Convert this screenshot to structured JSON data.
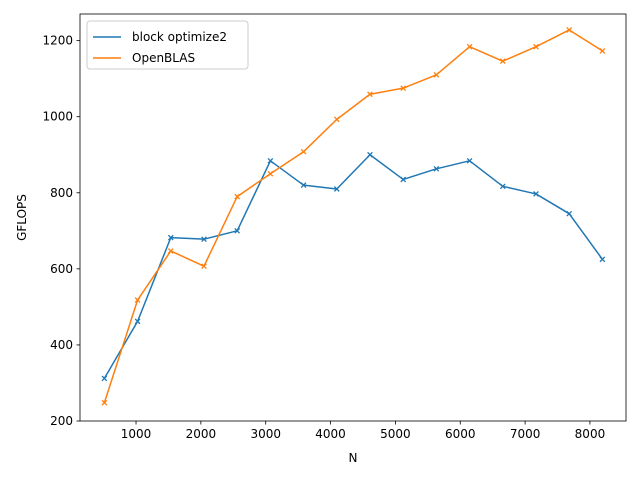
{
  "chart_data": {
    "type": "line",
    "title": "",
    "xlabel": "N",
    "ylabel": "GFLOPS",
    "xlim": [
      136,
      8556
    ],
    "ylim": [
      200,
      1270
    ],
    "xticks": [
      1000,
      2000,
      3000,
      4000,
      5000,
      6000,
      7000,
      8000
    ],
    "yticks": [
      200,
      400,
      600,
      800,
      1000,
      1200
    ],
    "grid": false,
    "legend_position": "top-left",
    "x": [
      512,
      1024,
      1536,
      2048,
      2560,
      3072,
      3584,
      4096,
      4608,
      5120,
      5632,
      6144,
      6656,
      7168,
      7680,
      8192
    ],
    "series": [
      {
        "name": "block optimize2",
        "color": "#1f77b4",
        "values": [
          312,
          462,
          682,
          678,
          700,
          884,
          820,
          810,
          900,
          835,
          863,
          884,
          817,
          797,
          745,
          625
        ]
      },
      {
        "name": "OpenBLAS",
        "color": "#ff7f0e",
        "values": [
          248,
          518,
          647,
          607,
          790,
          850,
          908,
          993,
          1059,
          1075,
          1110,
          1184,
          1146,
          1184,
          1228,
          1173
        ]
      }
    ]
  }
}
